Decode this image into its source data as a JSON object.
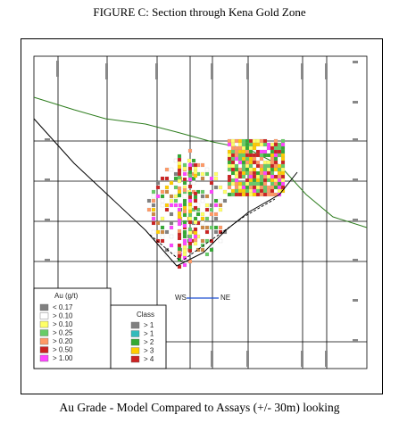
{
  "figure": {
    "title": "FIGURE C: Section through Kena Gold Zone",
    "caption": "Au Grade - Model Compared to Assays (+/- 30m) looking"
  },
  "section": {
    "direction_left": "WS",
    "direction_right": "NE",
    "colors": {
      "topography": "#2e7d1e",
      "grid": "#000000",
      "scale_bar": "#1f4fd0"
    }
  },
  "legend_au": {
    "title": "Au  (g/t)",
    "items": [
      {
        "label": "< 0.17",
        "color": "#808080"
      },
      {
        "label": "> 0.10",
        "color": "#ffffff"
      },
      {
        "label": "> 0.10",
        "color": "#ffff66"
      },
      {
        "label": "> 0.25",
        "color": "#66cc66"
      },
      {
        "label": "> 0.20",
        "color": "#ff9966"
      },
      {
        "label": "> 0.50",
        "color": "#cc2222"
      },
      {
        "label": "> 1.00",
        "color": "#ff44ff"
      }
    ]
  },
  "legend_class": {
    "title": "Class",
    "items": [
      {
        "label": "> 1",
        "color": "#808080"
      },
      {
        "label": "> 1",
        "color": "#33bbbb"
      },
      {
        "label": "> 2",
        "color": "#33aa33"
      },
      {
        "label": "> 3",
        "color": "#ffcc00"
      },
      {
        "label": "> 4",
        "color": "#cc2222"
      }
    ]
  }
}
